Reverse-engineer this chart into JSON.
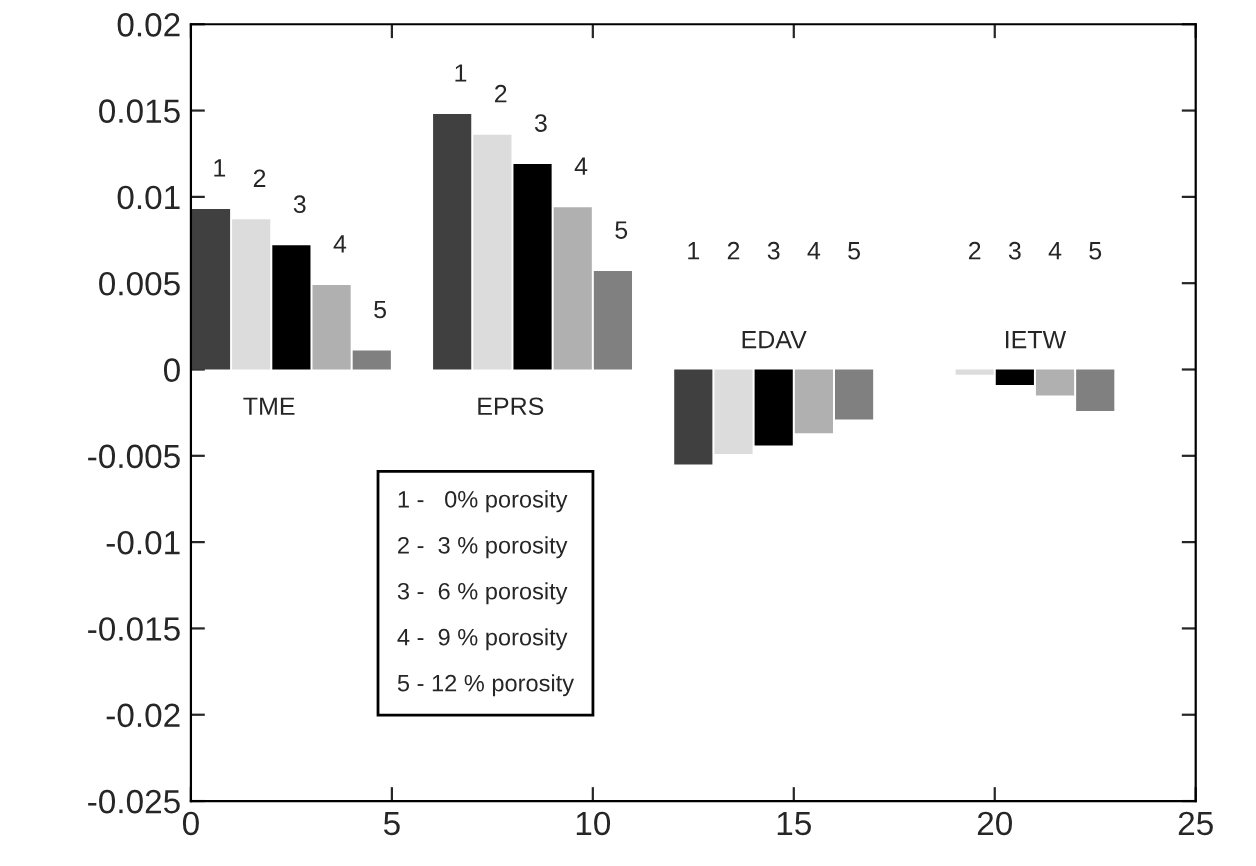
{
  "chart_data": {
    "type": "bar",
    "xlim": [
      0,
      25
    ],
    "xticks": [
      0,
      5,
      10,
      15,
      20,
      25
    ],
    "ylim": [
      -0.025,
      0.02
    ],
    "yticks": [
      -0.025,
      -0.02,
      -0.015,
      -0.01,
      -0.005,
      0,
      0.005,
      0.01,
      0.015,
      0.02
    ],
    "grid": false,
    "legend": false,
    "series": [
      {
        "color": "#404040",
        "x": [
          0.5,
          6.5,
          12.5
        ],
        "values": [
          0.0093,
          0.0148,
          -0.0055
        ]
      },
      {
        "color": "#dcdcdc",
        "x": [
          1.5,
          7.5,
          13.5,
          19.5
        ],
        "values": [
          0.0087,
          0.0136,
          -0.0049,
          -0.0003
        ]
      },
      {
        "color": "#000000",
        "x": [
          2.5,
          8.5,
          14.5,
          20.5
        ],
        "values": [
          0.0072,
          0.0119,
          -0.0044,
          -0.0009
        ]
      },
      {
        "color": "#b0b0b0",
        "x": [
          3.5,
          9.5,
          15.5,
          21.5
        ],
        "values": [
          0.0049,
          0.0094,
          -0.0037,
          -0.0015
        ]
      },
      {
        "color": "#808080",
        "x": [
          4.5,
          10.5,
          16.5,
          22.5
        ],
        "values": [
          0.0011,
          0.0057,
          -0.0029,
          -0.0024
        ]
      }
    ],
    "annotations": [
      {
        "text": "1",
        "x": 0.5,
        "y": 0.0093
      },
      {
        "text": "2",
        "x": 1.5,
        "y": 0.0087
      },
      {
        "text": "3",
        "x": 2.5,
        "y": 0.0072
      },
      {
        "text": "4",
        "x": 3.5,
        "y": 0.0049
      },
      {
        "text": "5",
        "x": 4.5,
        "y": 0.0011
      },
      {
        "text": "1",
        "x": 6.5,
        "y": 0.0148
      },
      {
        "text": "2",
        "x": 7.5,
        "y": 0.0136
      },
      {
        "text": "3",
        "x": 8.5,
        "y": 0.0119
      },
      {
        "text": "4",
        "x": 9.5,
        "y": 0.0094
      },
      {
        "text": "5",
        "x": 10.5,
        "y": 0.0057
      },
      "1",
      "2",
      "3",
      "4",
      "5",
      "2",
      "3",
      "4",
      "5",
      "TME",
      "EPRS",
      "EDAV",
      "IETW",
      "1 -   0% porosity",
      "2 -  3 % porosity",
      "3 -  6 % porosity",
      "4 -  9 % porosity",
      "5 - 12 % porosity"
    ]
  }
}
